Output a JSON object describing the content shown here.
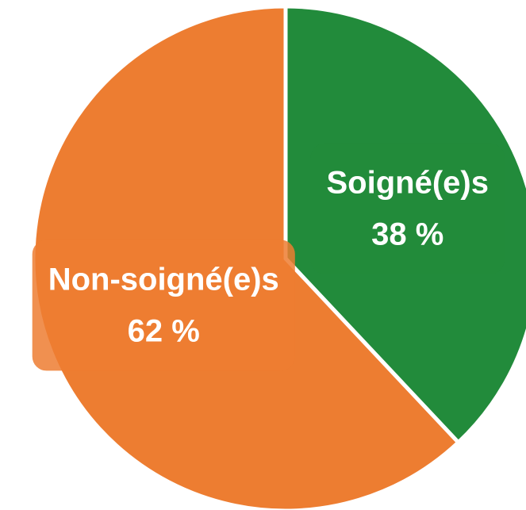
{
  "chart_data": {
    "type": "pie",
    "categories": [
      "Soigné(e)s",
      "Non-soigné(e)s"
    ],
    "values": [
      38,
      62
    ],
    "value_labels": [
      "38 %",
      "62 %"
    ],
    "colors": [
      "#228b3b",
      "#ed7d31"
    ]
  }
}
